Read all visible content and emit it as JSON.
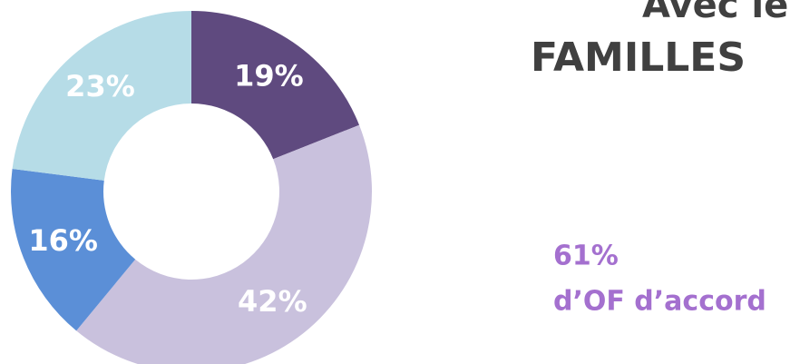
{
  "chart_data": {
    "type": "pie",
    "title": "Avec le",
    "subtitle": "FAMILLES",
    "values": [
      19,
      42,
      16,
      23
    ],
    "value_labels": [
      "19%",
      "42%",
      "16%",
      "23%"
    ],
    "colors": [
      "#5f4a7f",
      "#c9c1dd",
      "#5b8fd7",
      "#b6dce7"
    ],
    "donut": true,
    "annotation": [
      "61%",
      "d’OF d’accord"
    ]
  }
}
